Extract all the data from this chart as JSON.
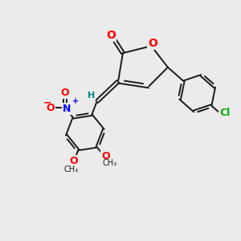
{
  "background_color": "#ebebeb",
  "bond_color": "#1a1a1a",
  "atom_colors": {
    "O": "#ff0000",
    "N": "#0000ff",
    "Cl": "#00aa00",
    "C": "#1a1a1a",
    "H": "#008888"
  },
  "font_size": 9,
  "figsize": [
    3.0,
    3.0
  ],
  "dpi": 100
}
